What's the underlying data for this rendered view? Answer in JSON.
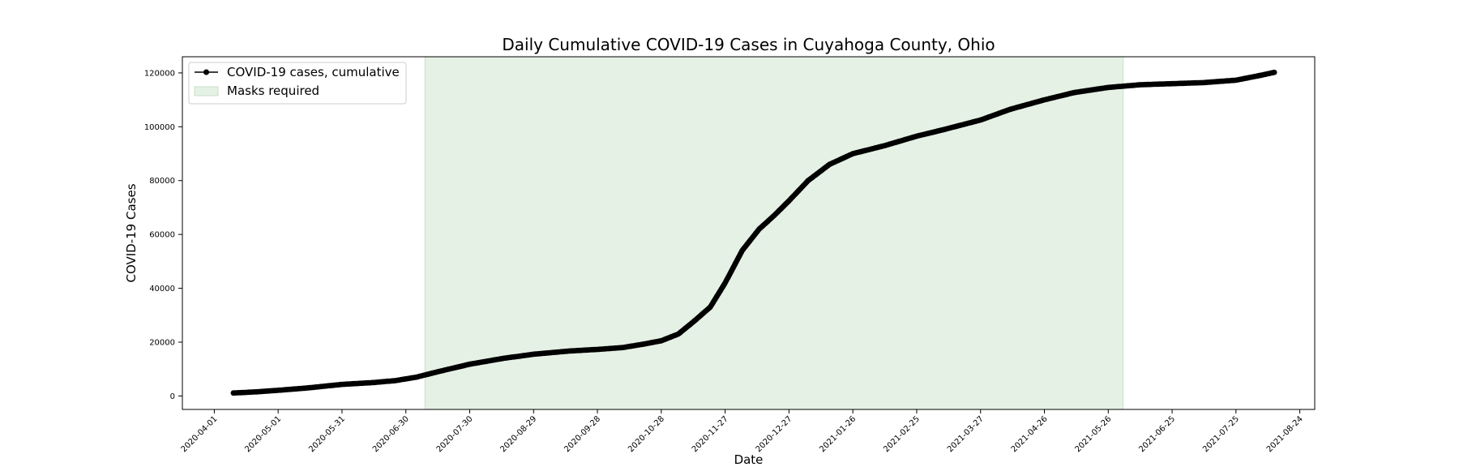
{
  "chart_data": {
    "type": "line",
    "title": "Daily Cumulative COVID-19 Cases in Cuyahoga County, Ohio",
    "xlabel": "Date",
    "ylabel": "COVID-19 Cases",
    "x_ticks": [
      "2020-04-01",
      "2020-05-01",
      "2020-05-31",
      "2020-06-30",
      "2020-07-30",
      "2020-08-29",
      "2020-09-28",
      "2020-10-28",
      "2020-11-27",
      "2020-12-27",
      "2021-01-26",
      "2021-02-25",
      "2021-03-27",
      "2021-04-26",
      "2021-05-26",
      "2021-06-25",
      "2021-07-25",
      "2021-08-24"
    ],
    "y_ticks": [
      0,
      20000,
      40000,
      60000,
      80000,
      100000,
      120000
    ],
    "xlim": [
      "2020-03-17",
      "2021-08-31"
    ],
    "ylim": [
      -5000,
      126000
    ],
    "grid": false,
    "legend_position": "top-left",
    "shaded_region": {
      "label": "Masks required",
      "start": "2020-07-09",
      "end": "2021-06-02",
      "color": "#e5f1e5",
      "edge_color": "#c6e0c6"
    },
    "series": [
      {
        "name": "COVID-19 cases, cumulative",
        "color": "#000000",
        "marker": "circle",
        "points": [
          [
            "2020-04-10",
            1100
          ],
          [
            "2020-04-20",
            1500
          ],
          [
            "2020-05-01",
            2100
          ],
          [
            "2020-05-15",
            3000
          ],
          [
            "2020-05-31",
            4300
          ],
          [
            "2020-06-15",
            5000
          ],
          [
            "2020-06-25",
            5700
          ],
          [
            "2020-07-05",
            7000
          ],
          [
            "2020-07-15",
            9000
          ],
          [
            "2020-07-30",
            11800
          ],
          [
            "2020-08-15",
            14000
          ],
          [
            "2020-08-29",
            15500
          ],
          [
            "2020-09-15",
            16700
          ],
          [
            "2020-09-28",
            17300
          ],
          [
            "2020-10-10",
            18000
          ],
          [
            "2020-10-20",
            19300
          ],
          [
            "2020-10-28",
            20500
          ],
          [
            "2020-11-05",
            23000
          ],
          [
            "2020-11-12",
            27500
          ],
          [
            "2020-11-20",
            33000
          ],
          [
            "2020-11-27",
            42000
          ],
          [
            "2020-12-05",
            54000
          ],
          [
            "2020-12-13",
            62000
          ],
          [
            "2020-12-20",
            67000
          ],
          [
            "2020-12-27",
            72500
          ],
          [
            "2021-01-05",
            80000
          ],
          [
            "2021-01-15",
            86000
          ],
          [
            "2021-01-26",
            90000
          ],
          [
            "2021-02-10",
            93000
          ],
          [
            "2021-02-25",
            96500
          ],
          [
            "2021-03-10",
            99000
          ],
          [
            "2021-03-27",
            102500
          ],
          [
            "2021-04-10",
            106500
          ],
          [
            "2021-04-26",
            110000
          ],
          [
            "2021-05-10",
            112700
          ],
          [
            "2021-05-26",
            114600
          ],
          [
            "2021-06-10",
            115600
          ],
          [
            "2021-06-25",
            116000
          ],
          [
            "2021-07-10",
            116400
          ],
          [
            "2021-07-25",
            117300
          ],
          [
            "2021-08-05",
            119000
          ],
          [
            "2021-08-12",
            120200
          ]
        ]
      }
    ]
  }
}
